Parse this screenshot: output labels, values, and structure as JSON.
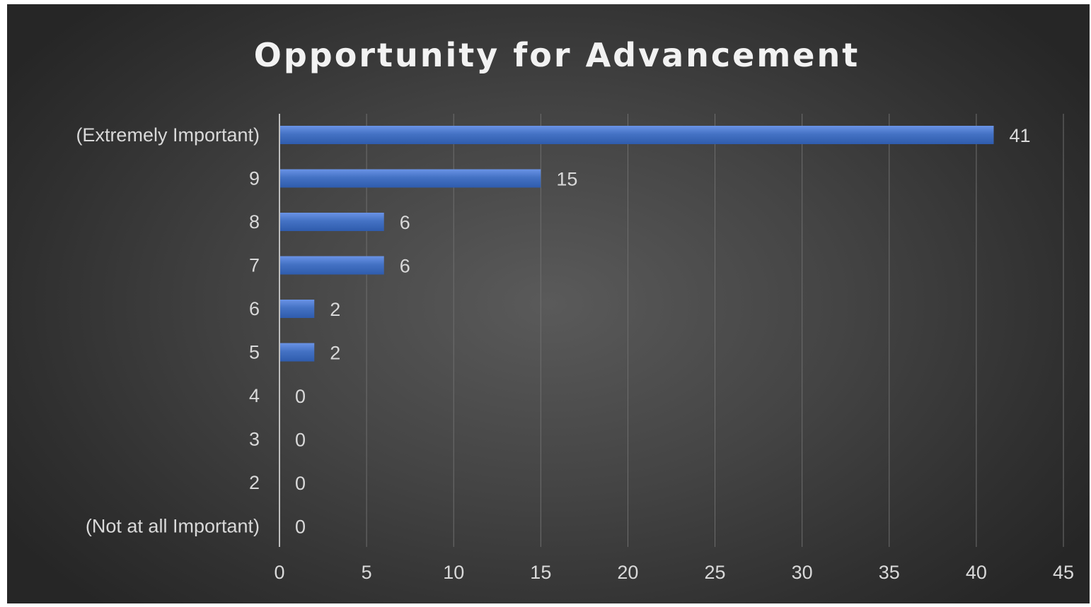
{
  "chart_data": {
    "type": "bar",
    "orientation": "horizontal",
    "title": "Opportunity  for Advancement",
    "categories": [
      "(Extremely Important)",
      "9",
      "8",
      "7",
      "6",
      "5",
      "4",
      "3",
      "2",
      "(Not at all Important)"
    ],
    "values": [
      41,
      15,
      6,
      6,
      2,
      2,
      0,
      0,
      0,
      0
    ],
    "data_labels": [
      "41",
      "15",
      "6",
      "6",
      "2",
      "2",
      "0",
      "0",
      "0",
      "0"
    ],
    "xlim": [
      0,
      45
    ],
    "x_ticks": [
      "0",
      "5",
      "10",
      "15",
      "20",
      "25",
      "30",
      "35",
      "40",
      "45"
    ],
    "x_tick_values": [
      0,
      5,
      10,
      15,
      20,
      25,
      30,
      35,
      40,
      45
    ],
    "xlabel": "",
    "ylabel": "",
    "grid": true,
    "legend": "none",
    "colors": {
      "bar": "#4472c4",
      "bar_highlight": "#5b8ae0",
      "text": "#d9d9d9",
      "title": "#f2f2f2",
      "grid": "#6e6e6e"
    }
  }
}
